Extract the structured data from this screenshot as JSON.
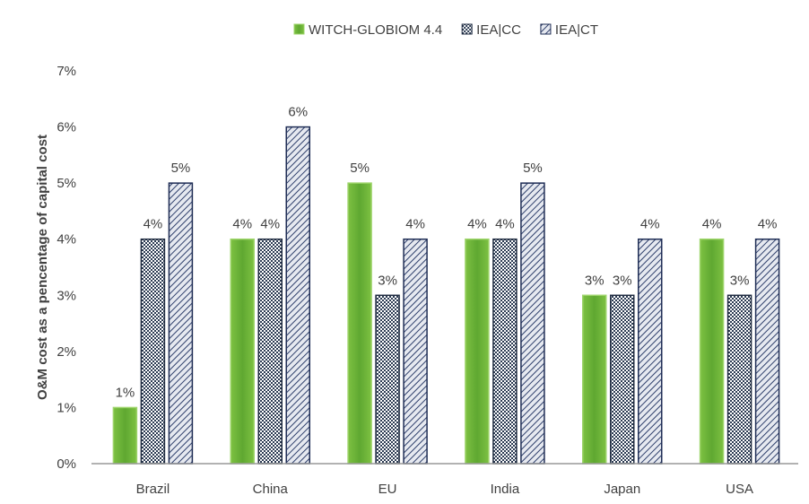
{
  "chart_data": {
    "type": "bar",
    "title": "",
    "xlabel": "",
    "ylabel": "O&M cost as a pencentage of capital cost",
    "categories": [
      "Brazil",
      "China",
      "EU",
      "India",
      "Japan",
      "USA"
    ],
    "series": [
      {
        "name": "WITCH-GLOBIOM 4.4",
        "values": [
          1,
          4,
          5,
          4,
          3,
          4
        ],
        "labels": [
          "1%",
          "4%",
          "5%",
          "4%",
          "3%",
          "4%"
        ],
        "color": "#7dc142",
        "pattern": "solid-gradient"
      },
      {
        "name": "IEA|CC",
        "values": [
          4,
          4,
          3,
          4,
          3,
          3
        ],
        "labels": [
          "4%",
          "4%",
          "3%",
          "4%",
          "3%",
          "3%"
        ],
        "color": "#2b3a52",
        "pattern": "checker"
      },
      {
        "name": "IEA|CT",
        "values": [
          5,
          6,
          4,
          5,
          4,
          4
        ],
        "labels": [
          "5%",
          "6%",
          "4%",
          "5%",
          "4%",
          "4%"
        ],
        "color": "#2e3f6b",
        "pattern": "diagonal"
      }
    ],
    "yticks": [
      "0%",
      "1%",
      "2%",
      "3%",
      "4%",
      "5%",
      "6%",
      "7%"
    ],
    "ylim": [
      0,
      7
    ],
    "grid": false,
    "legend": "top-center"
  }
}
